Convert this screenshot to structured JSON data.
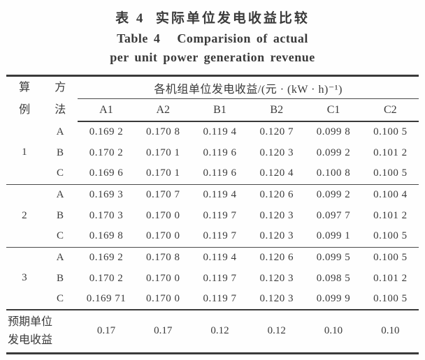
{
  "title": {
    "zh": "表 4  实际单位发电收益比较",
    "en_line1": "Table 4   Comparision of actual",
    "en_line2": "per unit power generation revenue"
  },
  "table": {
    "header": {
      "col_case": "算例",
      "col_method": "方法",
      "unit_label": "各机组单位发电收益/(元 · (kW · h)⁻¹)",
      "unit_cols": [
        "A1",
        "A2",
        "B1",
        "B2",
        "C1",
        "C2"
      ]
    },
    "groups": [
      {
        "case": "1",
        "rows": [
          {
            "method": "A",
            "values": [
              "0.169 2",
              "0.170 8",
              "0.119 4",
              "0.120 7",
              "0.099 8",
              "0.100 5"
            ]
          },
          {
            "method": "B",
            "values": [
              "0.170 2",
              "0.170 1",
              "0.119 6",
              "0.120 3",
              "0.099 2",
              "0.101 2"
            ]
          },
          {
            "method": "C",
            "values": [
              "0.169 6",
              "0.170 1",
              "0.119 6",
              "0.120 4",
              "0.100 8",
              "0.100 5"
            ]
          }
        ]
      },
      {
        "case": "2",
        "rows": [
          {
            "method": "A",
            "values": [
              "0.169 3",
              "0.170 7",
              "0.119 4",
              "0.120 6",
              "0.099 2",
              "0.100 4"
            ]
          },
          {
            "method": "B",
            "values": [
              "0.170 3",
              "0.170 0",
              "0.119 7",
              "0.120 3",
              "0.097 7",
              "0.101 2"
            ]
          },
          {
            "method": "C",
            "values": [
              "0.169 8",
              "0.170 0",
              "0.119 7",
              "0.120 3",
              "0.099 1",
              "0.100 5"
            ]
          }
        ]
      },
      {
        "case": "3",
        "rows": [
          {
            "method": "A",
            "values": [
              "0.169 2",
              "0.170 8",
              "0.119 4",
              "0.120 6",
              "0.099 5",
              "0.100 5"
            ]
          },
          {
            "method": "B",
            "values": [
              "0.170 2",
              "0.170 0",
              "0.119 7",
              "0.120 3",
              "0.098 5",
              "0.101 2"
            ]
          },
          {
            "method": "C",
            "values": [
              "0.169 71",
              "0.170 0",
              "0.119 7",
              "0.120 3",
              "0.099 9",
              "0.100 5"
            ]
          }
        ]
      }
    ],
    "footer": {
      "label": "预期单位发电收益",
      "values": [
        "0.17",
        "0.17",
        "0.12",
        "0.12",
        "0.10",
        "0.10"
      ]
    }
  },
  "colors": {
    "text": "#3a3a3a",
    "rule": "#3a3a3a",
    "background": "#fefefe"
  }
}
